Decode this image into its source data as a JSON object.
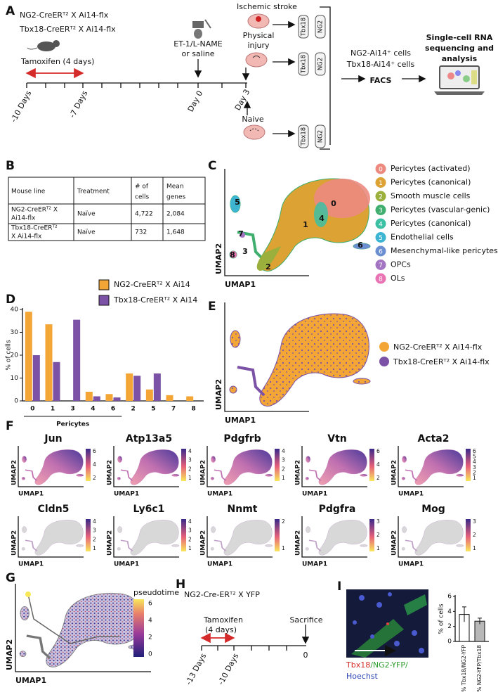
{
  "panel_labels": [
    "A",
    "B",
    "C",
    "D",
    "E",
    "F",
    "G",
    "H",
    "I"
  ],
  "panel_a": {
    "lines": [
      "NG2-CreERᵀ² X Ai14-flx",
      "Tbx18-CreERᵀ² X Ai14-flx"
    ],
    "tamoxifen": "Tamoxifen (4 days)",
    "timepoints": [
      "-10 Days",
      "-7 Days",
      "Day 0",
      "Day 3"
    ],
    "treatment": [
      "ET-1/L-NAME",
      "or saline"
    ],
    "ischemic_stroke": "Ischemic stroke",
    "physical_injury": [
      "Physical",
      "injury"
    ],
    "naive": "Naive",
    "tube_labels": [
      "Tbx18",
      "NG2"
    ],
    "sorted_cells": [
      "NG2-Ai14⁺ cells",
      "Tbx18-Ai14⁺ cells"
    ],
    "facs": "FACS",
    "output": [
      "Single-cell RNA",
      "sequencing and",
      "analysis"
    ]
  },
  "table": {
    "header": [
      [
        "Mouse line"
      ],
      [
        "Treatment"
      ],
      [
        "# of",
        "cells"
      ],
      [
        "Mean",
        "genes"
      ]
    ],
    "rows": [
      {
        "mouse_line": [
          "NG2-CreERᵀ² X",
          "Ai14-flx"
        ],
        "treatment": "Naïve",
        "cells": "4,722",
        "genes": "2,084"
      },
      {
        "mouse_line": [
          "Tbx18-CreERᵀ²",
          "X Ai14-flx"
        ],
        "treatment": "Naïve",
        "cells": "732",
        "genes": "1,648"
      }
    ]
  },
  "umap_axes": {
    "x": "UMAP1",
    "y": "UMAP2"
  },
  "panel_c": {
    "clusters": [
      {
        "id": "0",
        "label": "Pericytes (activated)",
        "color": "#ec8a80"
      },
      {
        "id": "1",
        "label": "Pericytes (canonical)",
        "color": "#dca234"
      },
      {
        "id": "2",
        "label": "Smooth muscle cells",
        "color": "#9bb03c"
      },
      {
        "id": "3",
        "label": "Pericytes (vascular-genic)",
        "color": "#3fae6e"
      },
      {
        "id": "4",
        "label": "Pericytes (canonical)",
        "color": "#3cc0a4"
      },
      {
        "id": "5",
        "label": "Endothelial cells",
        "color": "#3cb4d2"
      },
      {
        "id": "6",
        "label": "Mesenchymal-like pericytes",
        "color": "#6c8fd2"
      },
      {
        "id": "7",
        "label": "OPCs",
        "color": "#a274c2"
      },
      {
        "id": "8",
        "label": "OLs",
        "color": "#e874b4"
      }
    ]
  },
  "panel_e": {
    "legend": [
      {
        "label": "NG2-CreERᵀ² X Ai14-flx",
        "color": "#f3a536"
      },
      {
        "label": "Tbx18-CreERᵀ² X Ai14-flx",
        "color": "#7b52a6"
      }
    ]
  },
  "panel_f": {
    "genes": [
      {
        "name": "Jun",
        "ticks": [
          2,
          4,
          6
        ]
      },
      {
        "name": "Atp13a5",
        "ticks": [
          1,
          2,
          3,
          4
        ]
      },
      {
        "name": "Pdgfrb",
        "ticks": [
          1,
          2,
          3,
          4
        ]
      },
      {
        "name": "Vtn",
        "ticks": [
          2,
          4,
          6
        ]
      },
      {
        "name": "Acta2",
        "ticks": [
          1,
          2,
          3,
          4,
          5,
          6
        ]
      },
      {
        "name": "Cldn5",
        "ticks": [
          1,
          2,
          3,
          4
        ]
      },
      {
        "name": "Ly6c1",
        "ticks": [
          1,
          2,
          3,
          4
        ]
      },
      {
        "name": "Nnmt",
        "ticks": [
          1,
          2
        ]
      },
      {
        "name": "Pdgfra",
        "ticks": [
          1,
          2,
          3
        ]
      },
      {
        "name": "Mog",
        "ticks": [
          1,
          2,
          3
        ]
      }
    ]
  },
  "panel_g": {
    "colorbar_label": "pseudotime",
    "ticks": [
      0,
      2,
      4,
      6
    ]
  },
  "panel_h": {
    "title": "NG2-Cre-ERᵀ² X YFP",
    "tamoxifen": [
      "Tamoxifen",
      "(4 days)"
    ],
    "sacrifice": "Sacrifice",
    "timepoints": [
      "-13 Days",
      "-10 Days"
    ],
    "end": "0"
  },
  "panel_i": {
    "caption": [
      {
        "text": "Tbx18",
        "color": "#d42a2a"
      },
      {
        "text": "/NG2-YFP/",
        "color": "#2a9a2a"
      },
      {
        "text": "Hoechst",
        "color": "#2a44b4"
      }
    ]
  },
  "chart_data": [
    {
      "type": "bar",
      "categories": [
        "0",
        "1",
        "3",
        "4",
        "6",
        "2",
        "5",
        "7",
        "8"
      ],
      "series": [
        {
          "name": "NG2-CreERᵀ² X Ai14",
          "color": "#f3a536",
          "values": [
            39,
            33.5,
            0,
            4,
            3,
            12,
            5,
            2.5,
            2
          ]
        },
        {
          "name": "Tbx18-CreERᵀ² X Ai14",
          "color": "#7b52a6",
          "values": [
            20,
            17,
            35.5,
            2,
            1.5,
            11,
            12,
            0,
            0
          ]
        }
      ],
      "ylim": [
        0,
        40
      ],
      "yticks": [
        0,
        10,
        20,
        30,
        40
      ],
      "ylabel": "% of cells",
      "group_label": "Pericytes"
    },
    {
      "type": "bar",
      "categories": [
        "% Tbx18/NG2-YFP",
        "% NG2-YFP/Tbx18"
      ],
      "values": [
        3.6,
        2.7
      ],
      "errors": [
        1.0,
        0.4
      ],
      "colors": [
        "#ffffff",
        "#b8b8b8"
      ],
      "ylim": [
        0,
        6
      ],
      "yticks": [
        0,
        2,
        4,
        6
      ],
      "ylabel": "% of cells"
    }
  ]
}
